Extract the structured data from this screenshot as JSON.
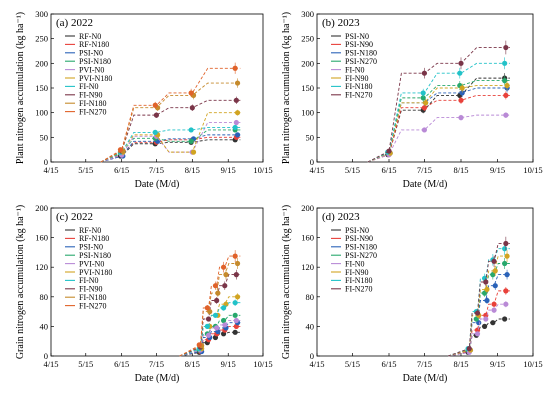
{
  "chart_data": [
    {
      "type": "line",
      "title": "(a) 2022",
      "xlabel": "Date (M/d)",
      "ylabel": "Plant nitrogen accumulation (kg ha⁻¹)",
      "x_ticks": [
        "4/15",
        "5/15",
        "6/15",
        "7/15",
        "8/15",
        "9/15",
        "10/15"
      ],
      "ylim": [
        0,
        300
      ],
      "y_ticks": [
        0,
        50,
        100,
        150,
        200,
        250,
        300
      ],
      "x_dates": [
        "6/15",
        "7/15",
        "8/15",
        "9/22"
      ],
      "series": [
        {
          "name": "RF-N0",
          "color": "#333333",
          "values": [
            12,
            37,
            40,
            45
          ]
        },
        {
          "name": "RF-N180",
          "color": "#e8413a",
          "values": [
            15,
            40,
            45,
            50
          ]
        },
        {
          "name": "PSI-N0",
          "color": "#2a62b8",
          "values": [
            12,
            42,
            47,
            55
          ]
        },
        {
          "name": "PSI-N180",
          "color": "#27a86c",
          "values": [
            18,
            48,
            42,
            65
          ]
        },
        {
          "name": "PVI-N0",
          "color": "#b98ad6",
          "values": [
            14,
            52,
            20,
            80
          ]
        },
        {
          "name": "PVI-N180",
          "color": "#d1a422",
          "values": [
            20,
            55,
            20,
            100
          ]
        },
        {
          "name": "FI-N0",
          "color": "#22c2c8",
          "values": [
            20,
            60,
            65,
            70
          ]
        },
        {
          "name": "FI-N90",
          "color": "#7a3548",
          "values": [
            22,
            95,
            110,
            125
          ]
        },
        {
          "name": "FI-N180",
          "color": "#c58a2c",
          "values": [
            22,
            110,
            135,
            160
          ]
        },
        {
          "name": "FI-N270",
          "color": "#e0622a",
          "values": [
            25,
            115,
            140,
            190
          ]
        }
      ]
    },
    {
      "type": "line",
      "title": "(b) 2023",
      "xlabel": "Date (M/d)",
      "ylabel": "Plant nitrogen accumulation (kg ha⁻¹)",
      "x_ticks": [
        "4/15",
        "5/15",
        "6/15",
        "7/15",
        "8/15",
        "9/15",
        "10/15"
      ],
      "ylim": [
        0,
        300
      ],
      "y_ticks": [
        0,
        50,
        100,
        150,
        200,
        250,
        300
      ],
      "x_dates": [
        "6/15",
        "7/15",
        "8/15",
        "9/22"
      ],
      "series": [
        {
          "name": "PSI-N0",
          "color": "#333333",
          "values": [
            15,
            105,
            135,
            170
          ]
        },
        {
          "name": "PSI-N90",
          "color": "#e8413a",
          "values": [
            15,
            110,
            125,
            135
          ]
        },
        {
          "name": "PSI-N180",
          "color": "#2a62b8",
          "values": [
            18,
            120,
            140,
            150
          ]
        },
        {
          "name": "PSI-N270",
          "color": "#27a86c",
          "values": [
            20,
            130,
            155,
            165
          ]
        },
        {
          "name": "FI-N0",
          "color": "#b98ad6",
          "values": [
            15,
            65,
            90,
            95
          ]
        },
        {
          "name": "FI-N90",
          "color": "#d1a422",
          "values": [
            18,
            120,
            150,
            155
          ]
        },
        {
          "name": "FI-N180",
          "color": "#22c2c8",
          "values": [
            20,
            140,
            180,
            200
          ]
        },
        {
          "name": "FI-N270",
          "color": "#7a3548",
          "values": [
            22,
            180,
            200,
            232
          ]
        }
      ]
    },
    {
      "type": "line",
      "title": "(c) 2022",
      "xlabel": "Date (M/d)",
      "ylabel": "Grain nitrogen accumulation (kg ha⁻¹)",
      "x_ticks": [
        "4/15",
        "5/15",
        "6/15",
        "7/15",
        "8/15",
        "9/15",
        "10/15"
      ],
      "ylim": [
        0,
        200
      ],
      "y_ticks": [
        0,
        40,
        80,
        120,
        160,
        200
      ],
      "x_dates": [
        "8/22",
        "8/29",
        "9/5",
        "9/12",
        "9/22"
      ],
      "series": [
        {
          "name": "RF-N0",
          "color": "#333333",
          "values": [
            5,
            18,
            25,
            30,
            32
          ]
        },
        {
          "name": "RF-N180",
          "color": "#e8413a",
          "values": [
            6,
            22,
            30,
            35,
            40
          ]
        },
        {
          "name": "PSI-N0",
          "color": "#2a62b8",
          "values": [
            6,
            25,
            33,
            38,
            45
          ]
        },
        {
          "name": "PSI-N180",
          "color": "#27a86c",
          "values": [
            8,
            30,
            40,
            48,
            55
          ]
        },
        {
          "name": "PVI-N0",
          "color": "#b98ad6",
          "values": [
            8,
            28,
            38,
            42,
            48
          ]
        },
        {
          "name": "PVI-N180",
          "color": "#d1a422",
          "values": [
            10,
            40,
            55,
            70,
            80
          ]
        },
        {
          "name": "FI-N0",
          "color": "#22c2c8",
          "values": [
            10,
            40,
            55,
            65,
            72
          ]
        },
        {
          "name": "FI-N90",
          "color": "#7a3548",
          "values": [
            12,
            50,
            75,
            95,
            110
          ]
        },
        {
          "name": "FI-N180",
          "color": "#c58a2c",
          "values": [
            14,
            60,
            85,
            110,
            125
          ]
        },
        {
          "name": "FI-N270",
          "color": "#e0622a",
          "values": [
            15,
            65,
            95,
            120,
            135
          ]
        }
      ]
    },
    {
      "type": "line",
      "title": "(d) 2023",
      "xlabel": "Date (M/d)",
      "ylabel": "Grain nitrogen accumulation (kg ha⁻¹)",
      "x_ticks": [
        "4/15",
        "5/15",
        "6/15",
        "7/15",
        "8/15",
        "9/15",
        "10/15"
      ],
      "ylim": [
        0,
        200
      ],
      "y_ticks": [
        0,
        40,
        80,
        120,
        160,
        200
      ],
      "x_dates": [
        "8/22",
        "8/29",
        "9/5",
        "9/12",
        "9/22"
      ],
      "series": [
        {
          "name": "PSI-N0",
          "color": "#333333",
          "values": [
            5,
            28,
            40,
            45,
            50
          ]
        },
        {
          "name": "PSI-N90",
          "color": "#e8413a",
          "values": [
            6,
            35,
            55,
            70,
            88
          ]
        },
        {
          "name": "PSI-N180",
          "color": "#2a62b8",
          "values": [
            8,
            45,
            75,
            95,
            110
          ]
        },
        {
          "name": "PSI-N270",
          "color": "#27a86c",
          "values": [
            8,
            50,
            85,
            110,
            125
          ]
        },
        {
          "name": "FI-N0",
          "color": "#b98ad6",
          "values": [
            5,
            30,
            50,
            62,
            70
          ]
        },
        {
          "name": "FI-N90",
          "color": "#d1a422",
          "values": [
            8,
            55,
            90,
            115,
            135
          ]
        },
        {
          "name": "FI-N180",
          "color": "#22c2c8",
          "values": [
            10,
            60,
            105,
            130,
            145
          ]
        },
        {
          "name": "FI-N270",
          "color": "#7a3548",
          "values": [
            10,
            58,
            100,
            128,
            152
          ]
        }
      ]
    }
  ]
}
